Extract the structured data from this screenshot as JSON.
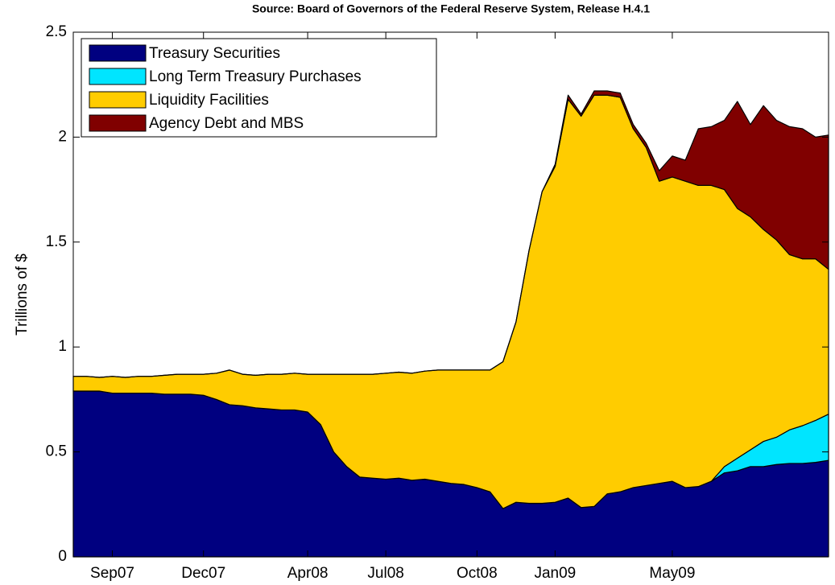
{
  "chart_data": {
    "type": "stacked_area",
    "title": "Source: Board of Governors of the Federal Reserve System, Release H.4.1",
    "ylabel": "Trillions of $",
    "categories": [
      null,
      null,
      null,
      "Sep07",
      null,
      null,
      null,
      null,
      null,
      null,
      "Dec07",
      null,
      null,
      null,
      null,
      null,
      null,
      null,
      "Apr08",
      null,
      null,
      null,
      null,
      null,
      "Jul08",
      null,
      null,
      null,
      null,
      null,
      null,
      "Oct08",
      null,
      null,
      null,
      null,
      null,
      "Jan09",
      null,
      null,
      null,
      null,
      null,
      null,
      null,
      null,
      "May09",
      null,
      null,
      null,
      null,
      null,
      null,
      null,
      null,
      null,
      null,
      null,
      null
    ],
    "series": [
      {
        "name": "Treasury Securities",
        "color": "#000080",
        "values": [
          0.79,
          0.79,
          0.79,
          0.78,
          0.78,
          0.78,
          0.78,
          0.775,
          0.775,
          0.775,
          0.77,
          0.75,
          0.725,
          0.72,
          0.71,
          0.705,
          0.7,
          0.7,
          0.69,
          0.63,
          0.5,
          0.43,
          0.38,
          0.375,
          0.37,
          0.375,
          0.365,
          0.37,
          0.36,
          0.35,
          0.345,
          0.33,
          0.31,
          0.23,
          0.26,
          0.255,
          0.255,
          0.26,
          0.28,
          0.235,
          0.24,
          0.3,
          0.31,
          0.33,
          0.34,
          0.35,
          0.36,
          0.33,
          0.335,
          0.36,
          0.4,
          0.41,
          0.43,
          0.43,
          0.44,
          0.445,
          0.445,
          0.45,
          0.46
        ]
      },
      {
        "name": "Long Term Treasury Purchases",
        "color": "#00e5ff",
        "values": [
          0,
          0,
          0,
          0,
          0,
          0,
          0,
          0,
          0,
          0,
          0,
          0,
          0,
          0,
          0,
          0,
          0,
          0,
          0,
          0,
          0,
          0,
          0,
          0,
          0,
          0,
          0,
          0,
          0,
          0,
          0,
          0,
          0,
          0,
          0,
          0,
          0,
          0,
          0,
          0,
          0,
          0,
          0,
          0,
          0,
          0,
          0,
          0,
          0,
          0,
          0.03,
          0.06,
          0.08,
          0.12,
          0.13,
          0.16,
          0.18,
          0.2,
          0.22
        ]
      },
      {
        "name": "Liquidity Facilities",
        "color": "#ffcc00",
        "values": [
          0.07,
          0.07,
          0.065,
          0.08,
          0.075,
          0.08,
          0.08,
          0.09,
          0.095,
          0.095,
          0.1,
          0.125,
          0.165,
          0.15,
          0.155,
          0.165,
          0.17,
          0.175,
          0.18,
          0.24,
          0.37,
          0.44,
          0.49,
          0.495,
          0.505,
          0.505,
          0.51,
          0.515,
          0.53,
          0.54,
          0.545,
          0.56,
          0.58,
          0.7,
          0.86,
          1.205,
          1.485,
          1.6,
          1.9,
          1.865,
          1.96,
          1.9,
          1.88,
          1.71,
          1.61,
          1.44,
          1.45,
          1.46,
          1.435,
          1.41,
          1.32,
          1.19,
          1.11,
          1.01,
          0.94,
          0.835,
          0.795,
          0.77,
          0.69
        ]
      },
      {
        "name": "Agency Debt and MBS",
        "color": "#800000",
        "values": [
          0,
          0,
          0,
          0,
          0,
          0,
          0,
          0,
          0,
          0,
          0,
          0,
          0,
          0,
          0,
          0,
          0,
          0,
          0,
          0,
          0,
          0,
          0,
          0,
          0,
          0,
          0,
          0,
          0,
          0,
          0,
          0,
          0,
          0,
          0,
          0,
          0,
          0.01,
          0.02,
          0.01,
          0.02,
          0.02,
          0.02,
          0.02,
          0.02,
          0.05,
          0.1,
          0.1,
          0.27,
          0.28,
          0.33,
          0.51,
          0.44,
          0.59,
          0.57,
          0.61,
          0.62,
          0.58,
          0.64
        ]
      }
    ],
    "ylim": [
      0,
      2.5
    ],
    "yticks": [
      0,
      0.5,
      1,
      1.5,
      2,
      2.5
    ],
    "legend": "upper-left",
    "grid": false
  }
}
